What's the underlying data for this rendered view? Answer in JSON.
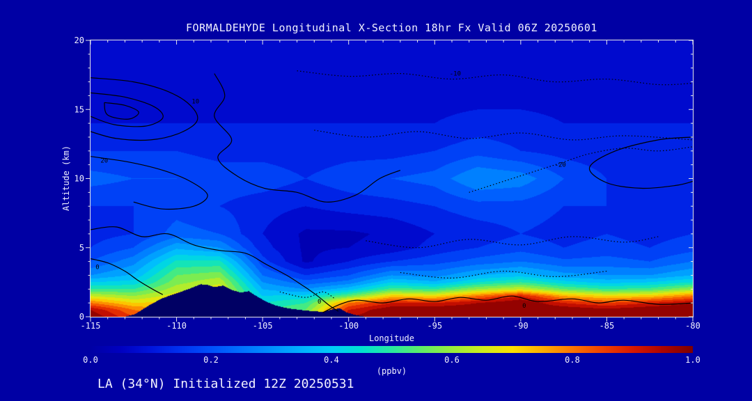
{
  "title": "FORMALDEHYDE Longitudinal X-Section 18hr  Fx Valid 06Z 20250601",
  "footer": "LA (34°N) Initialized 12Z 20250531",
  "colors": {
    "background": "#0000A4",
    "terrain": "#000064",
    "axis": "#E8E8E8",
    "text": "#F2F2FF",
    "contour": "#000000"
  },
  "axes": {
    "x": {
      "label": "Longitude",
      "min": -115,
      "max": -80,
      "major_ticks": [
        -115,
        -110,
        -105,
        -100,
        -95,
        -90,
        -85,
        -80
      ],
      "minor_step": 1
    },
    "y": {
      "label": "Altitude (km)",
      "min": 0,
      "max": 20,
      "major_ticks": [
        0,
        5,
        10,
        15,
        20
      ],
      "minor_step": 1
    }
  },
  "colorbar": {
    "min": 0.0,
    "max": 1.0,
    "tick_labels": [
      "0.0",
      "0.2",
      "0.4",
      "0.6",
      "0.8",
      "1.0"
    ],
    "units": "(ppbv)"
  },
  "chart_data": {
    "type": "heatmap",
    "quantity": "formaldehyde mixing ratio",
    "units": "ppbv",
    "x_longitudes": [
      -115,
      -112.5,
      -110,
      -107.5,
      -105,
      -102.5,
      -100,
      -97.5,
      -95,
      -92.5,
      -90,
      -87.5,
      -85,
      -82.5,
      -80
    ],
    "y_altitudes_km": [
      0,
      0.5,
      1,
      1.5,
      2,
      2.5,
      3,
      4,
      5,
      6,
      8,
      10,
      12,
      14,
      16,
      18,
      20
    ],
    "values_ppbv": [
      [
        1.0,
        0.85,
        0.78,
        0.72,
        0.55,
        0.6,
        0.95,
        1.0,
        1.0,
        1.0,
        1.0,
        1.0,
        1.0,
        1.0,
        1.0
      ],
      [
        0.95,
        0.8,
        0.75,
        0.72,
        0.5,
        0.55,
        0.9,
        1.0,
        1.0,
        1.0,
        1.0,
        1.0,
        0.97,
        1.0,
        1.0
      ],
      [
        0.8,
        0.7,
        0.72,
        0.72,
        0.45,
        0.5,
        0.8,
        0.9,
        0.9,
        0.95,
        1.0,
        0.9,
        0.85,
        0.9,
        0.95
      ],
      [
        0.65,
        0.6,
        0.68,
        0.7,
        0.4,
        0.42,
        0.55,
        0.72,
        0.7,
        0.8,
        0.9,
        0.75,
        0.7,
        0.72,
        0.8
      ],
      [
        0.5,
        0.5,
        0.63,
        0.68,
        0.35,
        0.3,
        0.38,
        0.52,
        0.5,
        0.6,
        0.65,
        0.55,
        0.5,
        0.52,
        0.6
      ],
      [
        0.4,
        0.42,
        0.58,
        0.64,
        0.3,
        0.22,
        0.27,
        0.4,
        0.36,
        0.45,
        0.5,
        0.42,
        0.38,
        0.4,
        0.45
      ],
      [
        0.3,
        0.36,
        0.55,
        0.58,
        0.25,
        0.15,
        0.2,
        0.3,
        0.28,
        0.35,
        0.38,
        0.32,
        0.3,
        0.3,
        0.35
      ],
      [
        0.2,
        0.28,
        0.46,
        0.46,
        0.17,
        0.04,
        0.1,
        0.15,
        0.18,
        0.22,
        0.25,
        0.21,
        0.22,
        0.2,
        0.25
      ],
      [
        0.15,
        0.2,
        0.34,
        0.3,
        0.12,
        0.04,
        0.05,
        0.07,
        0.12,
        0.15,
        0.18,
        0.15,
        0.17,
        0.15,
        0.18
      ],
      [
        0.13,
        0.15,
        0.22,
        0.2,
        0.1,
        0.04,
        0.04,
        0.06,
        0.1,
        0.12,
        0.15,
        0.13,
        0.15,
        0.13,
        0.15
      ],
      [
        0.15,
        0.15,
        0.18,
        0.15,
        0.12,
        0.1,
        0.12,
        0.13,
        0.15,
        0.18,
        0.18,
        0.15,
        0.15,
        0.12,
        0.13
      ],
      [
        0.22,
        0.2,
        0.2,
        0.18,
        0.18,
        0.15,
        0.18,
        0.2,
        0.22,
        0.3,
        0.28,
        0.2,
        0.15,
        0.15,
        0.15
      ],
      [
        0.15,
        0.15,
        0.15,
        0.13,
        0.13,
        0.12,
        0.13,
        0.13,
        0.15,
        0.18,
        0.15,
        0.13,
        0.12,
        0.12,
        0.12
      ],
      [
        0.1,
        0.1,
        0.1,
        0.1,
        0.1,
        0.1,
        0.1,
        0.1,
        0.1,
        0.12,
        0.12,
        0.1,
        0.1,
        0.1,
        0.1
      ],
      [
        0.08,
        0.08,
        0.08,
        0.08,
        0.08,
        0.08,
        0.08,
        0.08,
        0.08,
        0.08,
        0.08,
        0.08,
        0.08,
        0.08,
        0.08
      ],
      [
        0.07,
        0.07,
        0.07,
        0.07,
        0.07,
        0.07,
        0.07,
        0.07,
        0.07,
        0.07,
        0.07,
        0.07,
        0.07,
        0.07,
        0.07
      ],
      [
        0.06,
        0.06,
        0.06,
        0.06,
        0.06,
        0.06,
        0.06,
        0.06,
        0.06,
        0.06,
        0.06,
        0.06,
        0.06,
        0.06,
        0.06
      ]
    ],
    "fill_level_step": 0.05,
    "colormap": [
      [
        0.0,
        "#0000A4"
      ],
      [
        0.05,
        "#0000C0"
      ],
      [
        0.1,
        "#0014DC"
      ],
      [
        0.15,
        "#0032F0"
      ],
      [
        0.2,
        "#0050FC"
      ],
      [
        0.25,
        "#0070FF"
      ],
      [
        0.3,
        "#0090FF"
      ],
      [
        0.35,
        "#00B0FF"
      ],
      [
        0.4,
        "#00CCF8"
      ],
      [
        0.45,
        "#00E0D0"
      ],
      [
        0.5,
        "#28E8A0"
      ],
      [
        0.55,
        "#60EC66"
      ],
      [
        0.6,
        "#98EC3C"
      ],
      [
        0.65,
        "#CCEC1C"
      ],
      [
        0.7,
        "#FCE000"
      ],
      [
        0.75,
        "#FCAC00"
      ],
      [
        0.8,
        "#FC7400"
      ],
      [
        0.85,
        "#F04000"
      ],
      [
        0.9,
        "#D81800"
      ],
      [
        0.95,
        "#AC0400"
      ],
      [
        1.0,
        "#7C0000"
      ]
    ],
    "terrain_profile_km": [
      [
        -115,
        0.0
      ],
      [
        -113,
        0.0
      ],
      [
        -112.4,
        0.2
      ],
      [
        -111.5,
        0.9
      ],
      [
        -110.8,
        1.35
      ],
      [
        -110,
        1.7
      ],
      [
        -109.3,
        2.0
      ],
      [
        -108.6,
        2.35
      ],
      [
        -108.2,
        2.3
      ],
      [
        -107.8,
        2.15
      ],
      [
        -107.3,
        2.25
      ],
      [
        -106.8,
        1.95
      ],
      [
        -106.3,
        1.75
      ],
      [
        -105.8,
        1.85
      ],
      [
        -105.3,
        1.45
      ],
      [
        -104.8,
        1.1
      ],
      [
        -104.2,
        0.8
      ],
      [
        -103.5,
        0.6
      ],
      [
        -102.5,
        0.45
      ],
      [
        -101.5,
        0.35
      ],
      [
        -100.9,
        0.55
      ],
      [
        -100.5,
        0.6
      ],
      [
        -100.1,
        0.3
      ],
      [
        -99.5,
        0.1
      ],
      [
        -99,
        0.0
      ],
      [
        -80,
        0.0
      ]
    ],
    "contours": [
      {
        "label": "",
        "style": "solid",
        "points": [
          [
            -115,
            17.3
          ],
          [
            -112.5,
            17.0
          ],
          [
            -110.5,
            16.3
          ],
          [
            -109.2,
            15.3
          ],
          [
            -108.8,
            14.2
          ],
          [
            -109.8,
            13.3
          ],
          [
            -111.5,
            12.8
          ],
          [
            -113.5,
            12.9
          ],
          [
            -115,
            13.4
          ]
        ]
      },
      {
        "label": "",
        "style": "solid",
        "points": [
          [
            -115,
            16.2
          ],
          [
            -113,
            15.9
          ],
          [
            -111.3,
            15.2
          ],
          [
            -110.8,
            14.4
          ],
          [
            -111.8,
            13.8
          ],
          [
            -113.6,
            13.9
          ],
          [
            -115,
            14.5
          ]
        ]
      },
      {
        "label": "",
        "style": "solid",
        "points": [
          [
            -114.2,
            15.5
          ],
          [
            -113,
            15.3
          ],
          [
            -112.2,
            14.8
          ],
          [
            -112.8,
            14.3
          ],
          [
            -114,
            14.6
          ],
          [
            -114.2,
            15.5
          ]
        ]
      },
      {
        "label": "",
        "style": "solid",
        "points": [
          [
            -107.8,
            17.6
          ],
          [
            -107.2,
            16.0
          ],
          [
            -107.8,
            14.5
          ],
          [
            -106.8,
            12.8
          ],
          [
            -107.6,
            11.5
          ],
          [
            -106.5,
            10.2
          ],
          [
            -104.9,
            9.3
          ],
          [
            -103.0,
            9.0
          ],
          [
            -101.3,
            8.3
          ],
          [
            -99.6,
            8.8
          ],
          [
            -98.2,
            10.0
          ],
          [
            -97.0,
            10.6
          ]
        ]
      },
      {
        "label": "",
        "style": "solid",
        "points": [
          [
            -115,
            11.6
          ],
          [
            -112.8,
            11.2
          ],
          [
            -110.8,
            10.6
          ],
          [
            -109.2,
            9.8
          ],
          [
            -108.2,
            8.8
          ],
          [
            -109.0,
            8.0
          ],
          [
            -110.8,
            7.8
          ],
          [
            -112.5,
            8.3
          ]
        ]
      },
      {
        "label": "",
        "style": "solid",
        "points": [
          [
            -115,
            6.3
          ],
          [
            -113.5,
            6.5
          ],
          [
            -112,
            5.8
          ],
          [
            -110.5,
            6.0
          ],
          [
            -109,
            5.2
          ],
          [
            -107.5,
            4.8
          ],
          [
            -106,
            4.6
          ],
          [
            -104.8,
            3.8
          ],
          [
            -103.6,
            3.0
          ],
          [
            -102.6,
            2.2
          ],
          [
            -101.8,
            1.5
          ],
          [
            -101.1,
            0.8
          ],
          [
            -100.6,
            0.4
          ]
        ]
      },
      {
        "label": "",
        "style": "solid",
        "points": [
          [
            -115,
            4.2
          ],
          [
            -114,
            3.9
          ],
          [
            -113,
            3.3
          ],
          [
            -112.2,
            2.6
          ],
          [
            -111.4,
            2.0
          ],
          [
            -110.8,
            1.6
          ]
        ]
      },
      {
        "label": "",
        "style": "solid",
        "points": [
          [
            -101.5,
            0.3
          ],
          [
            -100.5,
            0.9
          ],
          [
            -99.5,
            1.2
          ],
          [
            -98,
            1.0
          ],
          [
            -96.5,
            1.3
          ],
          [
            -95,
            1.1
          ],
          [
            -93.5,
            1.4
          ],
          [
            -92,
            1.2
          ],
          [
            -90.5,
            1.5
          ],
          [
            -89,
            1.1
          ],
          [
            -87,
            1.3
          ],
          [
            -85.5,
            1.0
          ],
          [
            -84,
            1.2
          ],
          [
            -82,
            0.9
          ],
          [
            -80,
            1.0
          ]
        ]
      },
      {
        "label": "",
        "style": "dotted",
        "points": [
          [
            -103,
            17.8
          ],
          [
            -100,
            17.4
          ],
          [
            -97,
            17.6
          ],
          [
            -94,
            17.2
          ],
          [
            -91,
            17.5
          ],
          [
            -88,
            17.0
          ],
          [
            -85,
            17.2
          ],
          [
            -82,
            16.8
          ],
          [
            -80,
            16.9
          ]
        ]
      },
      {
        "label": "",
        "style": "dotted",
        "points": [
          [
            -93,
            9.0
          ],
          [
            -91,
            9.8
          ],
          [
            -89,
            10.6
          ],
          [
            -87.5,
            11.2
          ],
          [
            -86,
            11.8
          ],
          [
            -84,
            12.2
          ],
          [
            -82,
            12.0
          ],
          [
            -80,
            12.3
          ]
        ]
      },
      {
        "label": "",
        "style": "solid",
        "points": [
          [
            -80,
            13.0
          ],
          [
            -82,
            12.8
          ],
          [
            -84.5,
            12.0
          ],
          [
            -86,
            10.8
          ],
          [
            -85,
            9.7
          ],
          [
            -83,
            9.3
          ],
          [
            -81,
            9.5
          ],
          [
            -80,
            9.8
          ]
        ]
      },
      {
        "label": "",
        "style": "dotted",
        "points": [
          [
            -99,
            5.5
          ],
          [
            -96,
            5.0
          ],
          [
            -93,
            5.6
          ],
          [
            -90,
            5.2
          ],
          [
            -87,
            5.8
          ],
          [
            -84,
            5.4
          ],
          [
            -82,
            5.8
          ]
        ]
      },
      {
        "label": "",
        "style": "dotted",
        "points": [
          [
            -97,
            3.2
          ],
          [
            -94,
            2.8
          ],
          [
            -91,
            3.3
          ],
          [
            -88,
            2.9
          ],
          [
            -85,
            3.3
          ]
        ]
      },
      {
        "label": "",
        "style": "dotted",
        "points": [
          [
            -102,
            13.5
          ],
          [
            -99,
            13.0
          ],
          [
            -96,
            13.4
          ],
          [
            -93,
            12.9
          ],
          [
            -90,
            13.3
          ],
          [
            -87,
            12.8
          ],
          [
            -84,
            13.1
          ],
          [
            -80,
            12.8
          ]
        ]
      },
      {
        "label": "",
        "style": "dotted",
        "points": [
          [
            -104,
            1.8
          ],
          [
            -102.5,
            1.4
          ],
          [
            -101.5,
            1.8
          ],
          [
            -100.8,
            1.3
          ]
        ]
      }
    ],
    "contour_labels": [
      {
        "text": "10",
        "lon": -108.9,
        "km": 15.6
      },
      {
        "text": "20",
        "lon": -114.2,
        "km": 11.3
      },
      {
        "text": "-10",
        "lon": -93.8,
        "km": 17.6
      },
      {
        "text": "-20",
        "lon": -87.7,
        "km": 11.0
      },
      {
        "text": "0",
        "lon": -114.6,
        "km": 3.6
      },
      {
        "text": "0",
        "lon": -101.7,
        "km": 1.1
      },
      {
        "text": "0",
        "lon": -89.8,
        "km": 0.8
      }
    ]
  }
}
